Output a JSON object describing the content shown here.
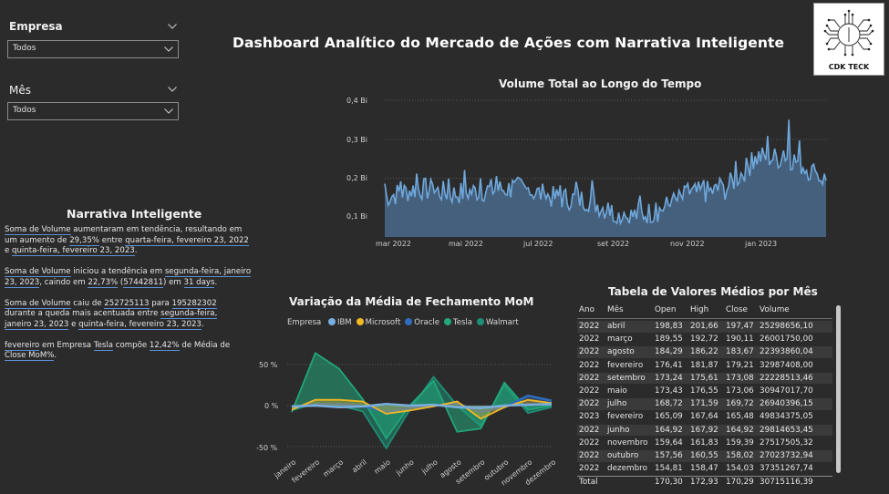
{
  "filters": {
    "empresa": {
      "label": "Empresa",
      "value": "Todos"
    },
    "mes": {
      "label": "Mês",
      "value": "Todos"
    }
  },
  "header": {
    "title": "Dashboard Analítico do Mercado de Ações com Narrativa Inteligente"
  },
  "logo": {
    "text": "CDK TECK"
  },
  "narrative": {
    "title": "Narrativa Inteligente",
    "p1": {
      "a": "Soma de Volume",
      "b": " aumentaram em tendência, resultando em um aumento de ",
      "c": "29,35%",
      "d": " entre ",
      "e": "quarta-feira, fevereiro 23, 2022",
      "f": " e ",
      "g": "quinta-feira, fevereiro 23, 2023",
      "h": "."
    },
    "p2": {
      "a": "Soma de Volume",
      "b": " iniciou a tendência em ",
      "c": "segunda-feira, janeiro 23, 2023",
      "d": ", caindo em ",
      "e": "22,73%",
      "f": " (",
      "g": "57442811",
      "h": ") em ",
      "i": "31 days",
      "j": "."
    },
    "p3": {
      "a": "Soma de Volume",
      "b": " caiu de ",
      "c": "252725113",
      "d": " para ",
      "e": "195282302",
      "f": " durante a queda mais acentuada entre ",
      "g": "segunda-feira, janeiro 23, 2023",
      "h": " e ",
      "i": "quinta-feira, fevereiro 23, 2023",
      "j": "."
    },
    "p4": {
      "a": "fevereiro",
      "b": " em Empresa ",
      "c": "Tesla",
      "d": " compõe ",
      "e": "12,42%",
      "f": " de Média de ",
      "g": "Close MoM%",
      "h": "."
    }
  },
  "volume_chart": {
    "title": "Volume Total ao Longo do Tempo",
    "y_ticks": [
      "0,1 Bi",
      "0,2 Bi",
      "0,3 Bi",
      "0,4 Bi"
    ],
    "x_ticks": [
      "mar 2022",
      "mai 2022",
      "jul 2022",
      "set 2022",
      "nov 2022",
      "jan 2023"
    ],
    "color": "#6fa8dc"
  },
  "mom_chart": {
    "title": "Variação da Média de Fechamento MoM",
    "legend_title": "Empresa",
    "y_ticks": [
      "50 %",
      "0 %",
      "-50 %"
    ],
    "colors": {
      "IBM": "#7aaee0",
      "Microsoft": "#f2b824",
      "Oracle": "#2e6dbd",
      "Tesla": "#22a67a",
      "Walmart": "#1e8f75"
    }
  },
  "chart_data": [
    {
      "type": "area",
      "title": "Volume Total ao Longo do Tempo",
      "ylim": [
        0.05,
        0.4
      ],
      "x": [
        "2022-02-23",
        "2022-03-01",
        "2022-04-01",
        "2022-05-01",
        "2022-06-01",
        "2022-07-01",
        "2022-08-01",
        "2022-09-01",
        "2022-10-01",
        "2022-11-01",
        "2022-12-01",
        "2023-01-01",
        "2023-01-23",
        "2023-02-23"
      ],
      "values": [
        0.152,
        0.175,
        0.16,
        0.17,
        0.175,
        0.15,
        0.145,
        0.1,
        0.115,
        0.16,
        0.17,
        0.255,
        0.25,
        0.195
      ]
    },
    {
      "type": "line",
      "title": "Variação da Média de Fechamento MoM",
      "categories": [
        "janeiro",
        "fevereiro",
        "março",
        "abril",
        "maio",
        "junho",
        "julho",
        "agosto",
        "setembro",
        "outubro",
        "novembro",
        "dezembro"
      ],
      "ylim": [
        -0.55,
        0.75
      ],
      "series": [
        {
          "name": "IBM",
          "values": [
            -0.01,
            0.0,
            -0.02,
            -0.01,
            0.02,
            0.0,
            0.01,
            -0.02,
            -0.03,
            0.0,
            0.01,
            0.02
          ]
        },
        {
          "name": "Microsoft",
          "values": [
            -0.05,
            0.07,
            0.07,
            0.05,
            -0.1,
            -0.06,
            -0.01,
            0.05,
            -0.16,
            -0.02,
            0.07,
            0.03
          ]
        },
        {
          "name": "Oracle",
          "values": [
            -0.02,
            0.02,
            0.02,
            0.0,
            -0.08,
            -0.03,
            0.0,
            0.03,
            -0.08,
            -0.02,
            0.12,
            0.06
          ]
        },
        {
          "name": "Tesla",
          "values": [
            -0.08,
            0.64,
            0.45,
            0.08,
            -0.4,
            0.0,
            0.3,
            -0.32,
            -0.28,
            0.28,
            -0.05,
            0.0
          ]
        },
        {
          "name": "Walmart",
          "values": [
            -0.06,
            0.03,
            0.0,
            -0.07,
            -0.52,
            -0.05,
            0.35,
            0.0,
            -0.25,
            0.25,
            -0.09,
            -0.02
          ]
        }
      ]
    },
    {
      "type": "table",
      "title": "Tabela de Valores Médios por Mês",
      "columns": [
        "Ano",
        "Mês",
        "Open",
        "High",
        "Close",
        "Volume"
      ],
      "rows": [
        [
          "2022",
          "abril",
          "198,83",
          "201,66",
          "197,47",
          "25298656,10"
        ],
        [
          "2022",
          "março",
          "189,55",
          "192,72",
          "190,11",
          "26001750,00"
        ],
        [
          "2022",
          "agosto",
          "184,29",
          "186,22",
          "183,67",
          "22393860,04"
        ],
        [
          "2022",
          "fevereiro",
          "176,41",
          "181,87",
          "179,21",
          "32987408,00"
        ],
        [
          "2022",
          "setembro",
          "173,24",
          "175,61",
          "173,08",
          "22228513,46"
        ],
        [
          "2022",
          "maio",
          "173,43",
          "176,55",
          "173,06",
          "30947017,70"
        ],
        [
          "2022",
          "julho",
          "168,72",
          "171,59",
          "169,72",
          "26940396,15"
        ],
        [
          "2023",
          "fevereiro",
          "165,09",
          "167,64",
          "165,48",
          "49834375,05"
        ],
        [
          "2022",
          "junho",
          "164,92",
          "167,92",
          "164,92",
          "29814653,45"
        ],
        [
          "2022",
          "novembro",
          "159,64",
          "161,83",
          "159,39",
          "27517505,32"
        ],
        [
          "2022",
          "outubro",
          "157,56",
          "160,55",
          "158,02",
          "27023732,94"
        ],
        [
          "2022",
          "dezembro",
          "154,81",
          "158,47",
          "154,03",
          "37351267,74"
        ]
      ],
      "total": [
        "Total",
        "",
        "170,30",
        "172,93",
        "170,29",
        "30715116,39"
      ]
    }
  ]
}
